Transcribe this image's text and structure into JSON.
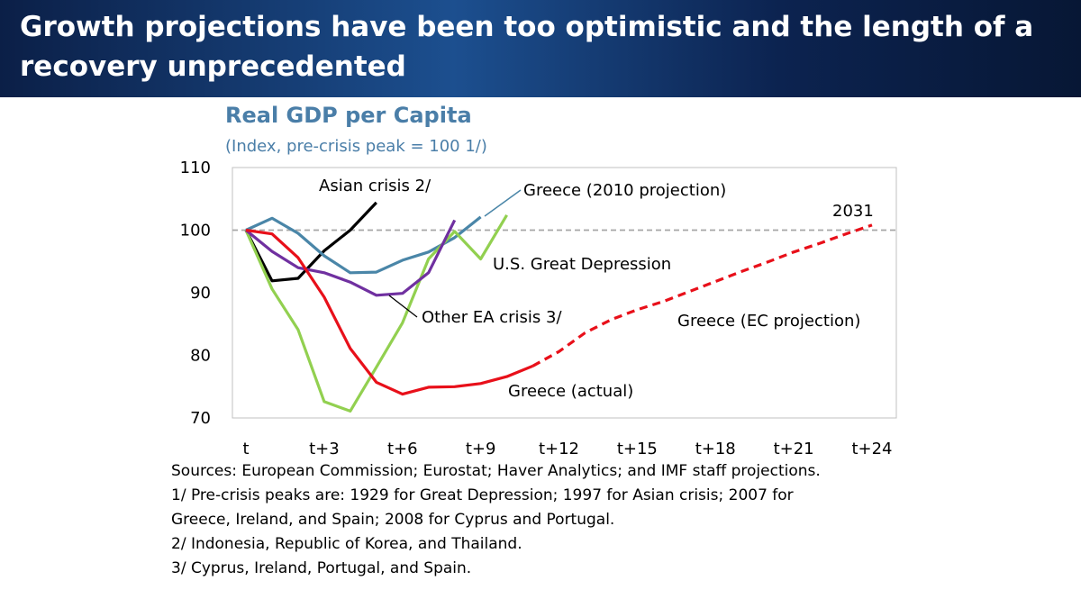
{
  "slide": {
    "title": "Growth projections have been too optimistic and the length of a recovery unprecedented"
  },
  "notes": [
    "Sources: European Commission; Eurostat; Haver Analytics; and IMF staff projections.",
    "1/ Pre-crisis peaks are: 1929 for Great Depression; 1997 for Asian crisis; 2007 for",
    "Greece, Ireland, and Spain; 2008 for Cyprus and Portugal.",
    "2/ Indonesia, Republic of Korea, and Thailand.",
    "3/ Cyprus, Ireland, Portugal, and Spain."
  ],
  "chart_data": {
    "type": "line",
    "title": "Real GDP per Capita",
    "subtitle": "(Index, pre-crisis peak = 100 1/)",
    "xlabel": "",
    "ylabel": "",
    "xlim": [
      0,
      24
    ],
    "ylim": [
      70,
      110
    ],
    "x_ticks": [
      0,
      3,
      6,
      9,
      12,
      15,
      18,
      21,
      24
    ],
    "x_tick_labels": [
      "t",
      "t+3",
      "t+6",
      "t+9",
      "t+12",
      "t+15",
      "t+18",
      "t+21",
      "t+24"
    ],
    "y_ticks": [
      70,
      80,
      90,
      100,
      110
    ],
    "y_tick_labels": [
      "70",
      "80",
      "90",
      "100",
      "110"
    ],
    "reference_line": {
      "y": 100,
      "style": "dashed",
      "color": "#a6a6a6"
    },
    "grid": false,
    "legend": "none",
    "series": [
      {
        "name": "Asian crisis 2/",
        "color": "#000000",
        "style": "solid",
        "x": [
          0,
          1,
          2,
          3,
          4,
          5
        ],
        "y": [
          100,
          91.9,
          92.3,
          96.7,
          100,
          104.4
        ]
      },
      {
        "name": "Greece (2010 projection)",
        "color": "#4a86a8",
        "style": "solid",
        "x": [
          0,
          1,
          2,
          3,
          4,
          5,
          6,
          7,
          8,
          9
        ],
        "y": [
          100,
          101.9,
          99.5,
          95.9,
          93.2,
          93.3,
          95.2,
          96.5,
          98.8,
          102.1
        ]
      },
      {
        "name": "U.S. Great Depression",
        "color": "#92d050",
        "style": "solid",
        "x": [
          0,
          1,
          2,
          3,
          4,
          5,
          6,
          7,
          8,
          9,
          10
        ],
        "y": [
          100,
          90.6,
          84.1,
          72.6,
          71.1,
          78.1,
          85.2,
          95.4,
          99.8,
          95.4,
          102.4
        ]
      },
      {
        "name": "Other EA crisis 3/",
        "color": "#7030a0",
        "style": "solid",
        "x": [
          0,
          1,
          2,
          3,
          4,
          5,
          6,
          7,
          8
        ],
        "y": [
          100,
          96.6,
          94.0,
          93.2,
          91.7,
          89.6,
          89.9,
          93.2,
          101.6
        ]
      },
      {
        "name": "Greece (actual)",
        "color": "#e8101a",
        "style": "solid",
        "x": [
          0,
          1,
          2,
          3,
          4,
          5,
          6,
          7,
          8,
          9,
          10,
          11
        ],
        "y": [
          100,
          99.4,
          95.6,
          89.3,
          81.1,
          75.7,
          73.8,
          74.9,
          75.0,
          75.5,
          76.6,
          78.3
        ]
      },
      {
        "name": "Greece (EC projection)",
        "color": "#e8101a",
        "style": "dashed",
        "x": [
          11,
          12,
          13,
          14,
          15,
          16,
          17,
          18,
          19,
          20,
          21,
          22,
          23,
          24
        ],
        "y": [
          78.3,
          80.6,
          83.6,
          85.7,
          87.3,
          88.6,
          90.2,
          91.8,
          93.4,
          94.9,
          96.5,
          97.9,
          99.4,
          100.8
        ]
      }
    ],
    "annotations": [
      {
        "text": "Asian crisis 2/",
        "color": "#000000"
      },
      {
        "text": "Greece (2010 projection)",
        "color": "#000000"
      },
      {
        "text": "2031",
        "color": "#000000"
      },
      {
        "text": "U.S. Great Depression",
        "color": "#000000"
      },
      {
        "text": "Other EA crisis 3/",
        "color": "#000000"
      },
      {
        "text": "Greece (EC projection)",
        "color": "#000000"
      },
      {
        "text": "Greece (actual)",
        "color": "#000000"
      }
    ]
  }
}
